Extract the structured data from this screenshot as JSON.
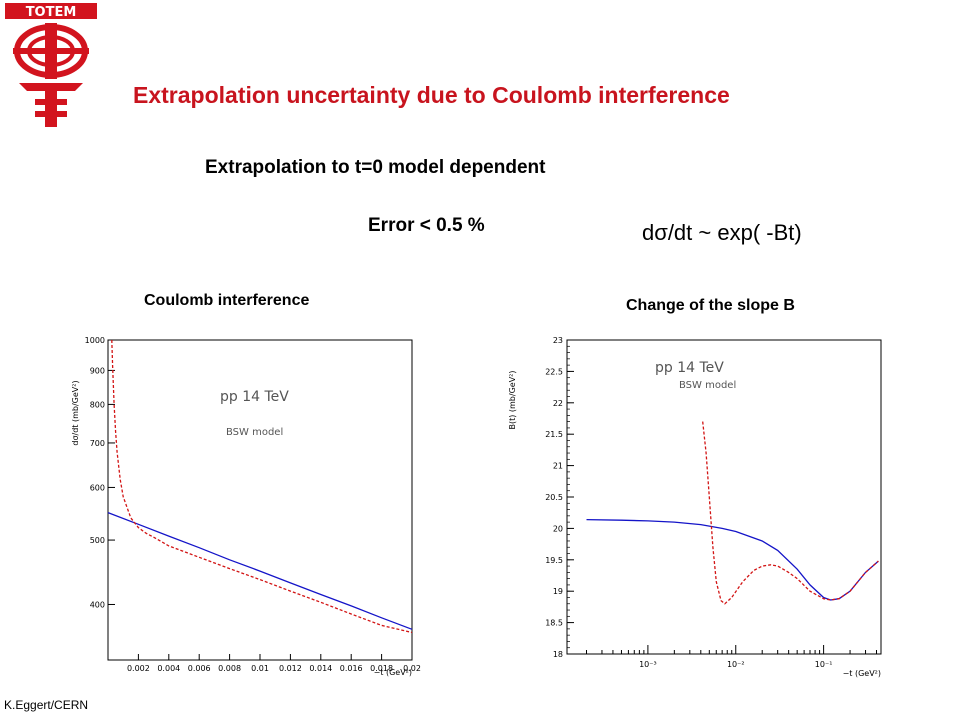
{
  "logo": {
    "text": "TOTEM",
    "color": "#d2141e"
  },
  "slide": {
    "title": "Extrapolation uncertainty due to Coulomb interference",
    "subtitle1": "Extrapolation to t=0 model dependent",
    "subtitle2": "Error < 0.5 %",
    "formula": "dσ/dt ~ exp( -Bt)",
    "caption_left": "Coulomb interference",
    "caption_right": "Change of the slope B",
    "footer": "K.Eggert/CERN",
    "title_color": "#c8141e"
  },
  "chart_data": [
    {
      "type": "line",
      "ylabel": "dσ/dt (mb/GeV²)",
      "xlabel": "−t (GeV²)",
      "xticks": [
        "0.002",
        "0.004",
        "0.006",
        "0.008",
        "0.01",
        "0.012",
        "0.014",
        "0.016",
        "0.018",
        "0.02"
      ],
      "yticks": [
        "400",
        "500",
        "600",
        "700",
        "800",
        "900",
        "1000"
      ],
      "xlim": [
        0,
        0.02
      ],
      "ylim": [
        330,
        1000
      ],
      "yscale": "log",
      "annotations": [
        "pp 14 TeV",
        "BSW model"
      ],
      "series": [
        {
          "style": "solid",
          "color": "#1414c8",
          "x": [
            0.0,
            0.002,
            0.004,
            0.006,
            0.008,
            0.01,
            0.012,
            0.014,
            0.016,
            0.018,
            0.02
          ],
          "y": [
            550,
            528,
            507,
            487,
            467,
            449,
            431,
            414,
            398,
            382,
            367
          ]
        },
        {
          "style": "dashed",
          "color": "#d21414",
          "x": [
            0.00025,
            0.0003,
            0.0004,
            0.0005,
            0.0006,
            0.0008,
            0.001,
            0.0015,
            0.002,
            0.0025,
            0.003,
            0.004,
            0.006,
            0.008,
            0.01,
            0.012,
            0.014,
            0.016,
            0.018,
            0.02
          ],
          "y": [
            1000,
            915,
            800,
            728,
            678,
            617,
            581,
            540,
            522,
            512,
            505,
            490,
            471,
            453,
            436,
            419,
            403,
            387,
            372,
            363
          ]
        }
      ]
    },
    {
      "type": "line",
      "ylabel": "B(t) (mb/GeV²)",
      "xlabel": "−t (GeV²)",
      "xscale": "log",
      "xticks": [
        "10⁻³",
        "10⁻²",
        "10⁻¹"
      ],
      "yticks": [
        "18",
        "18.5",
        "19",
        "19.5",
        "20",
        "20.5",
        "21",
        "21.5",
        "22",
        "22.5",
        "23"
      ],
      "xlim": [
        0.00012,
        0.45
      ],
      "ylim": [
        18,
        23
      ],
      "annotations": [
        "pp 14 TeV",
        "BSW model"
      ],
      "series": [
        {
          "style": "solid",
          "color": "#1414c8",
          "x": [
            0.0002,
            0.0005,
            0.001,
            0.002,
            0.004,
            0.007,
            0.01,
            0.02,
            0.03,
            0.05,
            0.07,
            0.1,
            0.12,
            0.15,
            0.2,
            0.3,
            0.42
          ],
          "y": [
            20.14,
            20.13,
            20.12,
            20.1,
            20.06,
            20.0,
            19.95,
            19.8,
            19.65,
            19.35,
            19.1,
            18.9,
            18.86,
            18.88,
            19.0,
            19.3,
            19.48
          ]
        },
        {
          "style": "dashed",
          "color": "#d21414",
          "x": [
            0.0042,
            0.0046,
            0.005,
            0.0055,
            0.006,
            0.0068,
            0.0075,
            0.009,
            0.012,
            0.016,
            0.02,
            0.025,
            0.03,
            0.04,
            0.05,
            0.07,
            0.1,
            0.12,
            0.15,
            0.2,
            0.3,
            0.42
          ],
          "y": [
            21.7,
            21.2,
            20.5,
            19.7,
            19.15,
            18.85,
            18.8,
            18.9,
            19.15,
            19.33,
            19.4,
            19.42,
            19.4,
            19.3,
            19.2,
            19.0,
            18.88,
            18.86,
            18.88,
            19.0,
            19.3,
            19.48
          ]
        }
      ]
    }
  ]
}
